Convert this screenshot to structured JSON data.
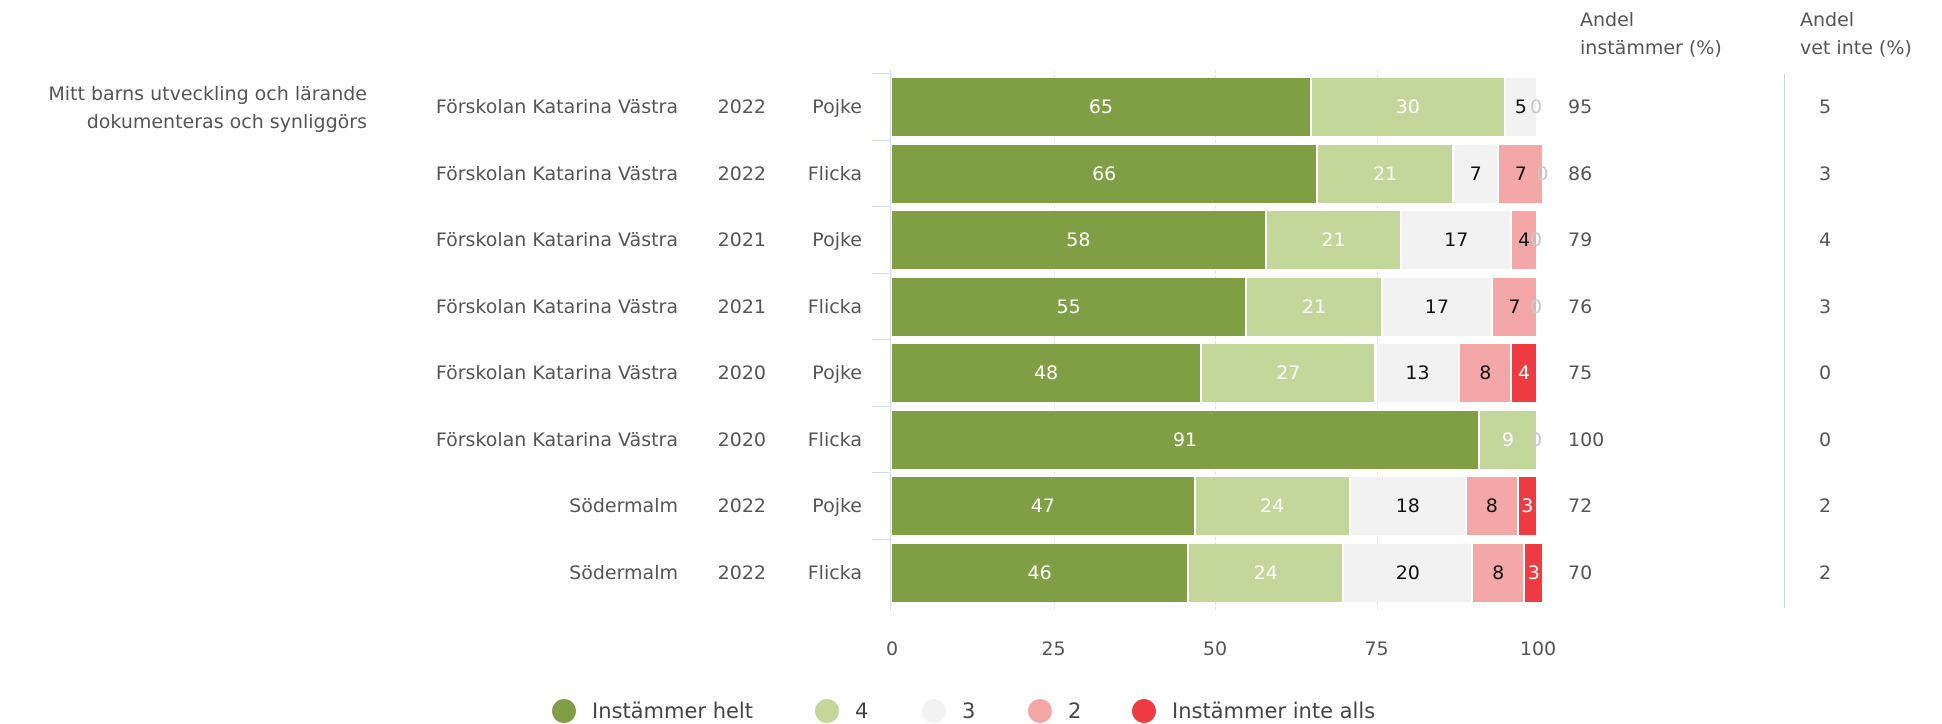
{
  "question": {
    "line1": "Mitt barns utveckling och lärande",
    "line2": "dokumenteras och synliggörs"
  },
  "headers": {
    "agree_line1": "Andel",
    "agree_line2": "instämmer (%)",
    "unknown_line1": "Andel",
    "unknown_line2": "vet inte (%)"
  },
  "colors": {
    "Instämmer helt": "#809e43",
    "4": "#c4d79b",
    "3": "#f2f2f2",
    "2": "#f4a7a7",
    "Instämmer inte alls": "#ef3c42"
  },
  "chart_data": {
    "type": "bar",
    "orientation": "horizontal",
    "stacked": true,
    "xlim": [
      0,
      100
    ],
    "xticks": [
      "0",
      "25",
      "50",
      "75",
      "100"
    ],
    "legend_position": "bottom",
    "series_names": [
      "Instämmer helt",
      "4",
      "3",
      "2",
      "Instämmer inte alls"
    ],
    "rows": [
      {
        "school": "Förskolan Katarina Västra",
        "year": "2022",
        "gender": "Pojke",
        "values": [
          65,
          30,
          5,
          0,
          0
        ],
        "agree": "95",
        "unknown": "5"
      },
      {
        "school": "Förskolan Katarina Västra",
        "year": "2022",
        "gender": "Flicka",
        "values": [
          66,
          21,
          7,
          7,
          0
        ],
        "agree": "86",
        "unknown": "3"
      },
      {
        "school": "Förskolan Katarina Västra",
        "year": "2021",
        "gender": "Pojke",
        "values": [
          58,
          21,
          17,
          4,
          0
        ],
        "agree": "79",
        "unknown": "4"
      },
      {
        "school": "Förskolan Katarina Västra",
        "year": "2021",
        "gender": "Flicka",
        "values": [
          55,
          21,
          17,
          7,
          0
        ],
        "agree": "76",
        "unknown": "3"
      },
      {
        "school": "Förskolan Katarina Västra",
        "year": "2020",
        "gender": "Pojke",
        "values": [
          48,
          27,
          13,
          8,
          4
        ],
        "agree": "75",
        "unknown": "0"
      },
      {
        "school": "Förskolan Katarina Västra",
        "year": "2020",
        "gender": "Flicka",
        "values": [
          91,
          9,
          0,
          0,
          0
        ],
        "agree": "100",
        "unknown": "0"
      },
      {
        "school": "Södermalm",
        "year": "2022",
        "gender": "Pojke",
        "values": [
          47,
          24,
          18,
          8,
          3
        ],
        "agree": "72",
        "unknown": "2"
      },
      {
        "school": "Södermalm",
        "year": "2022",
        "gender": "Flicka",
        "values": [
          46,
          24,
          20,
          8,
          3
        ],
        "agree": "70",
        "unknown": "2"
      }
    ]
  }
}
